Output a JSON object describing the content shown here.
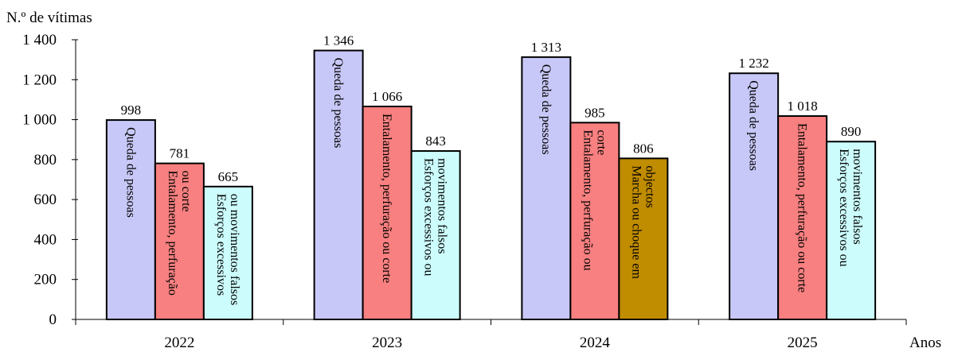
{
  "chart_data": {
    "type": "bar",
    "ylabel": "N.º de vítimas",
    "xlabel": "Anos",
    "ylim": [
      0,
      1400
    ],
    "yticks": [
      0,
      200,
      400,
      600,
      800,
      1000,
      1200,
      1400
    ],
    "ytick_labels": [
      "0",
      "200",
      "400",
      "600",
      "800",
      "1 000",
      "1 200",
      "1 400"
    ],
    "categories": [
      "2022",
      "2023",
      "2024",
      "2025"
    ],
    "groups": [
      {
        "year": "2022",
        "bars": [
          {
            "label": "Queda de pessoas",
            "value": 998,
            "value_label": "998",
            "color": "#c8c8f8"
          },
          {
            "label": "Entalamento, perfuração ou corte",
            "value": 781,
            "value_label": "781",
            "color": "#f88080"
          },
          {
            "label": "Esforços excessivos ou movimentos falsos",
            "value": 665,
            "value_label": "665",
            "color": "#ccfcfc"
          }
        ]
      },
      {
        "year": "2023",
        "bars": [
          {
            "label": "Queda de pessoas",
            "value": 1346,
            "value_label": "1 346",
            "color": "#c8c8f8"
          },
          {
            "label": "Entalamento, perfuração ou corte",
            "value": 1066,
            "value_label": "1 066",
            "color": "#f88080"
          },
          {
            "label": "Esforços excessivos ou movimentos falsos",
            "value": 843,
            "value_label": "843",
            "color": "#ccfcfc"
          }
        ]
      },
      {
        "year": "2024",
        "bars": [
          {
            "label": "Queda de pessoas",
            "value": 1313,
            "value_label": "1 313",
            "color": "#c8c8f8"
          },
          {
            "label": "Entalamento, perfuração ou corte",
            "value": 985,
            "value_label": "985",
            "color": "#f88080"
          },
          {
            "label": "Marcha ou choque em objectos",
            "value": 806,
            "value_label": "806",
            "color": "#c08c00"
          }
        ]
      },
      {
        "year": "2025",
        "bars": [
          {
            "label": "Queda de pessoas",
            "value": 1232,
            "value_label": "1 232",
            "color": "#c8c8f8"
          },
          {
            "label": "Entalamento, perfuração ou corte",
            "value": 1018,
            "value_label": "1 018",
            "color": "#f88080"
          },
          {
            "label": "Esforços excessivos ou movimentos falsos",
            "value": 890,
            "value_label": "890",
            "color": "#ccfcfc"
          }
        ]
      }
    ],
    "legend": "none",
    "grid": false
  }
}
